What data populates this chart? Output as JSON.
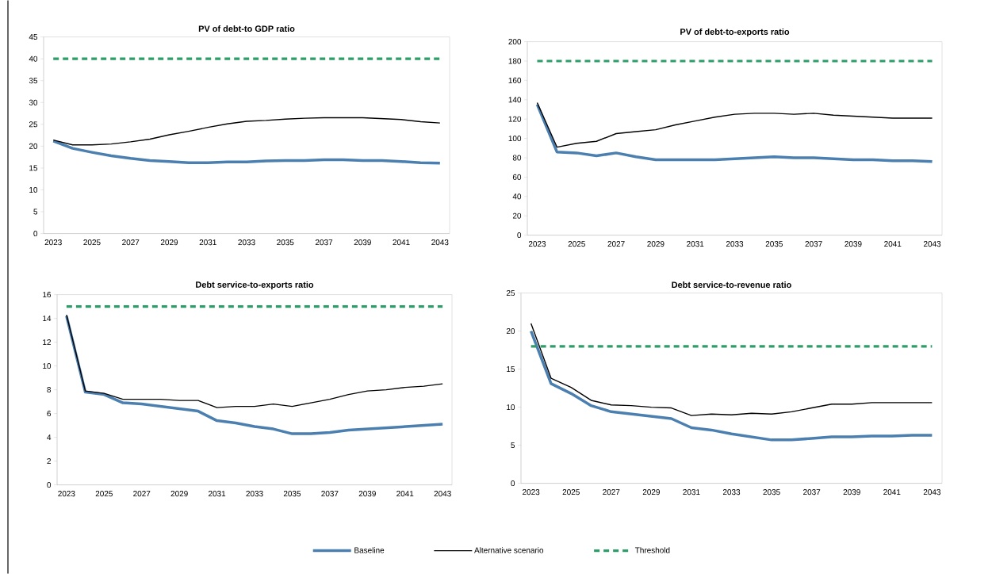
{
  "chart_data": [
    {
      "type": "line",
      "title": "PV of debt-to GDP ratio",
      "categories": [
        "2023",
        null,
        "2025",
        null,
        "2027",
        null,
        "2029",
        null,
        "2031",
        null,
        "2033",
        null,
        "2035",
        null,
        "2037",
        null,
        "2039",
        null,
        "2041",
        null,
        "2043"
      ],
      "ylim": [
        0,
        45
      ],
      "yticks": [
        0,
        5,
        10,
        15,
        20,
        25,
        30,
        35,
        40,
        45
      ],
      "grid": false,
      "legend": "bottom",
      "marker": "none",
      "series": [
        {
          "name": "Baseline",
          "color": "#4a7fb0",
          "line_style": "solid",
          "values": [
            21.2,
            19.5,
            18.6,
            17.8,
            17.2,
            16.7,
            16.5,
            16.2,
            16.2,
            16.4,
            16.4,
            16.6,
            16.7,
            16.7,
            16.9,
            16.9,
            16.7,
            16.7,
            16.5,
            16.2,
            16.1
          ]
        },
        {
          "name": "Alternative scenario",
          "color": "#000000",
          "line_style": "solid",
          "values": [
            21.4,
            20.3,
            20.3,
            20.5,
            21.0,
            21.6,
            22.6,
            23.4,
            24.3,
            25.1,
            25.7,
            25.9,
            26.2,
            26.4,
            26.5,
            26.5,
            26.5,
            26.3,
            26.1,
            25.6,
            25.3
          ]
        },
        {
          "name": "Threshold",
          "color": "#2e9e68",
          "line_style": "dashed",
          "values": [
            40,
            40,
            40,
            40,
            40,
            40,
            40,
            40,
            40,
            40,
            40,
            40,
            40,
            40,
            40,
            40,
            40,
            40,
            40,
            40,
            40
          ]
        }
      ]
    },
    {
      "type": "line",
      "title": "PV of debt-to-exports ratio",
      "categories": [
        "2023",
        null,
        "2025",
        null,
        "2027",
        null,
        "2029",
        null,
        "2031",
        null,
        "2033",
        null,
        "2035",
        null,
        "2037",
        null,
        "2039",
        null,
        "2041",
        null,
        "2043"
      ],
      "ylim": [
        0,
        200
      ],
      "yticks": [
        0,
        20,
        40,
        60,
        80,
        100,
        120,
        140,
        160,
        180,
        200
      ],
      "grid": false,
      "marker": "none",
      "series": [
        {
          "color": "#4a7fb0",
          "line_style": "solid",
          "values": [
            135,
            86,
            85,
            82,
            85,
            81,
            78,
            78,
            78,
            78,
            79,
            80,
            81,
            80,
            80,
            79,
            78,
            78,
            77,
            77,
            76
          ]
        },
        {
          "color": "#000000",
          "line_style": "solid",
          "values": [
            137,
            91,
            95,
            97,
            105,
            107,
            109,
            114,
            118,
            122,
            125,
            126,
            126,
            125,
            126,
            124,
            123,
            122,
            121,
            121,
            121
          ]
        },
        {
          "color": "#2e9e68",
          "line_style": "dashed",
          "values": [
            180,
            180,
            180,
            180,
            180,
            180,
            180,
            180,
            180,
            180,
            180,
            180,
            180,
            180,
            180,
            180,
            180,
            180,
            180,
            180,
            180
          ]
        }
      ]
    },
    {
      "type": "line",
      "title": "Debt service-to-exports ratio",
      "categories": [
        "2023",
        null,
        "2025",
        null,
        "2027",
        null,
        "2029",
        null,
        "2031",
        null,
        "2033",
        null,
        "2035",
        null,
        "2037",
        null,
        "2039",
        null,
        "2041",
        null,
        "2043"
      ],
      "ylim": [
        0,
        16
      ],
      "yticks": [
        0,
        2,
        4,
        6,
        8,
        10,
        12,
        14,
        16
      ],
      "grid": false,
      "marker": "none",
      "series": [
        {
          "color": "#4a7fb0",
          "line_style": "solid",
          "values": [
            14.2,
            7.8,
            7.6,
            6.9,
            6.8,
            6.6,
            6.4,
            6.2,
            5.4,
            5.2,
            4.9,
            4.7,
            4.3,
            4.3,
            4.4,
            4.6,
            4.7,
            4.8,
            4.9,
            5.0,
            5.1
          ]
        },
        {
          "color": "#000000",
          "line_style": "solid",
          "values": [
            14.3,
            7.9,
            7.7,
            7.2,
            7.2,
            7.2,
            7.1,
            7.1,
            6.5,
            6.6,
            6.6,
            6.8,
            6.6,
            6.9,
            7.2,
            7.6,
            7.9,
            8.0,
            8.2,
            8.3,
            8.5
          ]
        },
        {
          "color": "#2e9e68",
          "line_style": "dashed",
          "values": [
            15,
            15,
            15,
            15,
            15,
            15,
            15,
            15,
            15,
            15,
            15,
            15,
            15,
            15,
            15,
            15,
            15,
            15,
            15,
            15,
            15
          ]
        }
      ]
    },
    {
      "type": "line",
      "title": "Debt service-to-revenue ratio",
      "categories": [
        "2023",
        null,
        "2025",
        null,
        "2027",
        null,
        "2029",
        null,
        "2031",
        null,
        "2033",
        null,
        "2035",
        null,
        "2037",
        null,
        "2039",
        null,
        "2041",
        null,
        "2043"
      ],
      "ylim": [
        0,
        25
      ],
      "yticks": [
        0,
        5,
        10,
        15,
        20,
        25
      ],
      "grid": false,
      "marker": "none",
      "series": [
        {
          "color": "#4a7fb0",
          "line_style": "solid",
          "values": [
            20.0,
            13.1,
            11.8,
            10.2,
            9.4,
            9.1,
            8.8,
            8.5,
            7.3,
            7.0,
            6.5,
            6.1,
            5.7,
            5.7,
            5.9,
            6.1,
            6.1,
            6.2,
            6.2,
            6.3,
            6.3
          ]
        },
        {
          "color": "#000000",
          "line_style": "solid",
          "values": [
            21.0,
            13.8,
            12.6,
            10.9,
            10.3,
            10.2,
            10.0,
            9.9,
            8.9,
            9.1,
            9.0,
            9.2,
            9.1,
            9.4,
            9.9,
            10.4,
            10.4,
            10.6,
            10.6,
            10.6,
            10.6
          ]
        },
        {
          "color": "#2e9e68",
          "line_style": "dashed",
          "values": [
            18,
            18,
            18,
            18,
            18,
            18,
            18,
            18,
            18,
            18,
            18,
            18,
            18,
            18,
            18,
            18,
            18,
            18,
            18,
            18,
            18
          ]
        }
      ]
    }
  ]
}
